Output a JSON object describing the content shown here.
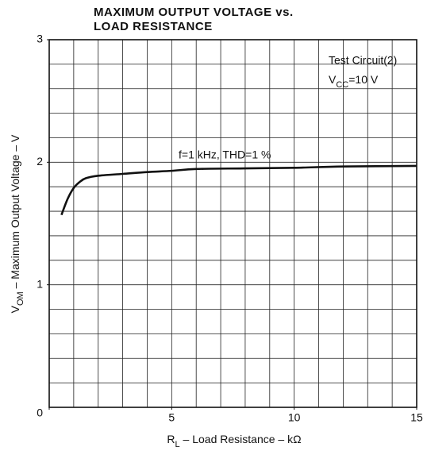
{
  "chart_data": {
    "type": "line",
    "title": [
      "MAXIMUM OUTPUT VOLTAGE vs.",
      "LOAD RESISTANCE"
    ],
    "x_label": [
      "R",
      "L",
      " – Load Resistance – kΩ"
    ],
    "y_label": [
      "V",
      "OM",
      " – Maximum Output Voltage – V"
    ],
    "annotations": {
      "test_circuit": "Test Circuit(2)",
      "supply": [
        "V",
        "CC",
        "=10 V"
      ],
      "condition": "f=1 kHz, THD=1 %"
    },
    "xlim": [
      0,
      15
    ],
    "ylim": [
      0,
      3
    ],
    "xticks": [
      0,
      5,
      10,
      15
    ],
    "yticks": [
      1,
      2,
      3
    ],
    "grid": {
      "x_step": 1,
      "y_step": 0.2
    },
    "series": [
      {
        "color": "#111111",
        "x": [
          0.5,
          0.75,
          1,
          1.25,
          1.5,
          2,
          3,
          4,
          5,
          6,
          8,
          10,
          12,
          15
        ],
        "values": [
          1.57,
          1.7,
          1.79,
          1.84,
          1.87,
          1.89,
          1.905,
          1.92,
          1.93,
          1.945,
          1.95,
          1.955,
          1.965,
          1.97
        ]
      }
    ]
  }
}
